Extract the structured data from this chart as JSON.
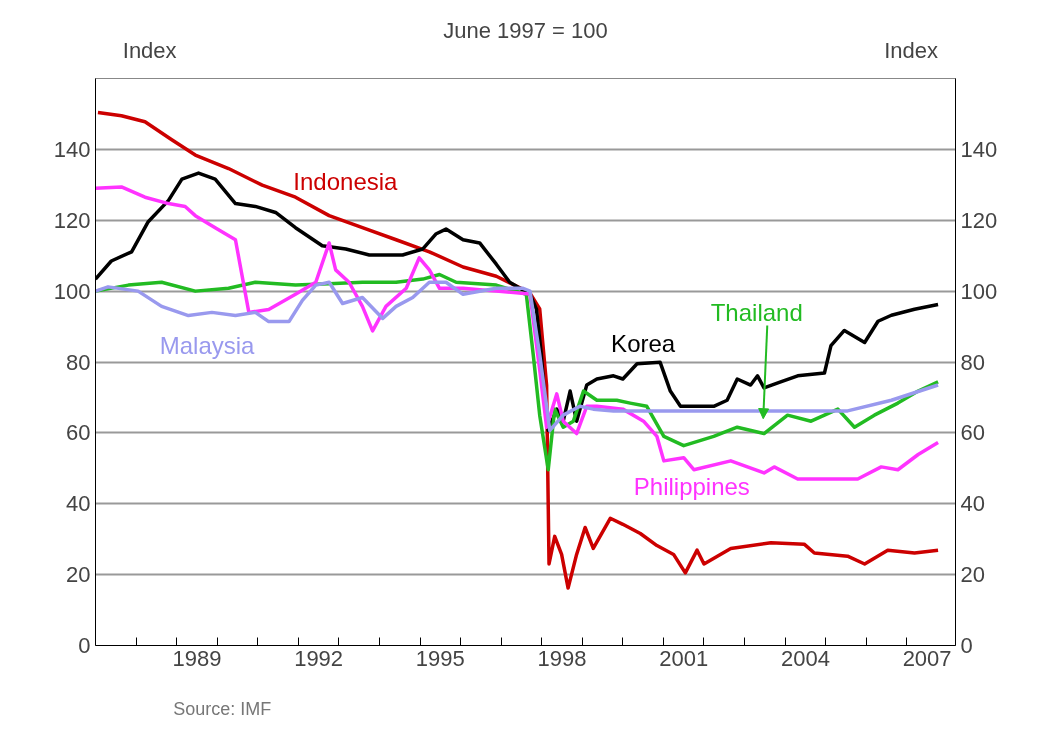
{
  "chart_data": {
    "type": "line",
    "title": "June 1997 = 100",
    "ylabel": "Index",
    "y2label": "Index",
    "annotations": [
      "Source: IMF"
    ],
    "xlim": [
      1987,
      2008.2
    ],
    "ylim": [
      0,
      160
    ],
    "y2lim": [
      0,
      160
    ],
    "xticks": [
      {
        "value": 1988,
        "label": null
      },
      {
        "value": 1989,
        "label": null
      },
      {
        "value": 1990,
        "label": null
      },
      {
        "value": 1991,
        "label": null
      },
      {
        "value": 1992,
        "label": null
      },
      {
        "value": 1993,
        "label": null
      },
      {
        "value": 1994,
        "label": null
      },
      {
        "value": 1995,
        "label": null
      },
      {
        "value": 1996,
        "label": null
      },
      {
        "value": 1997,
        "label": null
      },
      {
        "value": 1998,
        "label": null
      },
      {
        "value": 1999,
        "label": null
      },
      {
        "value": 2000,
        "label": null
      },
      {
        "value": 2001,
        "label": null
      },
      {
        "value": 2002,
        "label": null
      },
      {
        "value": 2003,
        "label": null
      },
      {
        "value": 2004,
        "label": null
      },
      {
        "value": 2005,
        "label": null
      },
      {
        "value": 2006,
        "label": null
      },
      {
        "value": 2007,
        "label": null
      },
      {
        "value": 1989.5,
        "label": "1989"
      },
      {
        "value": 1992.5,
        "label": "1992"
      },
      {
        "value": 1995.5,
        "label": "1995"
      },
      {
        "value": 1998.5,
        "label": "1998"
      },
      {
        "value": 2001.5,
        "label": "2001"
      },
      {
        "value": 2004.5,
        "label": "2004"
      },
      {
        "value": 2007.5,
        "label": "2007"
      }
    ],
    "yticks": [
      0,
      20,
      40,
      60,
      80,
      100,
      120,
      140
    ],
    "y2ticks": [
      0,
      20,
      40,
      60,
      80,
      100,
      120,
      140
    ],
    "grid": "y",
    "marker": "none",
    "line_style": "solid",
    "series": [
      {
        "name": "Indonesia",
        "color": "#cc0000",
        "x": [
          1987.06,
          1987.64,
          1988.22,
          1988.88,
          1989.46,
          1990.28,
          1991.11,
          1991.93,
          1992.76,
          1993.58,
          1994.41,
          1995.23,
          1996.06,
          1996.88,
          1997.7,
          1997.95,
          1998.12,
          1998.18,
          1998.32,
          1998.49,
          1998.65,
          1998.86,
          1999.07,
          1999.27,
          1999.69,
          2000.0,
          2000.43,
          2000.84,
          2001.25,
          2001.54,
          2001.83,
          2002.0,
          2002.66,
          2003.65,
          2004.47,
          2004.72,
          2005.54,
          2005.96,
          2006.53,
          2007.19,
          2007.77
        ],
        "values": [
          150.4,
          149.5,
          147.8,
          142.7,
          138.4,
          134.6,
          129.9,
          126.5,
          121.3,
          117.9,
          114.5,
          111.1,
          106.8,
          104.2,
          99.6,
          95,
          73.5,
          23,
          30.8,
          25.7,
          16.2,
          25.7,
          33.3,
          27.4,
          35.9,
          34.2,
          31.6,
          28.2,
          25.7,
          20.5,
          26.9,
          23,
          27.4,
          29,
          28.6,
          26.1,
          25.2,
          23,
          26.9,
          26.1,
          26.9
        ]
      },
      {
        "name": "Korea",
        "color": "#000000",
        "x": [
          1987.0,
          1987.39,
          1987.89,
          1988.3,
          1988.8,
          1989.13,
          1989.54,
          1989.95,
          1990.45,
          1990.94,
          1991.44,
          1991.93,
          1992.59,
          1993.17,
          1993.75,
          1994.57,
          1995.07,
          1995.4,
          1995.64,
          1996.06,
          1996.47,
          1996.88,
          1997.21,
          1997.71,
          1997.87,
          1997.99,
          1998.08,
          1998.16,
          1998.37,
          1998.53,
          1998.7,
          1998.86,
          1999.11,
          1999.36,
          1999.77,
          2000.0,
          2000.35,
          2000.92,
          2001.17,
          2001.42,
          2002.24,
          2002.57,
          2002.82,
          2003.15,
          2003.32,
          2003.48,
          2003.89,
          2004.31,
          2004.97,
          2005.13,
          2005.46,
          2005.96,
          2006.29,
          2006.62,
          2007.19,
          2007.77
        ],
        "values": [
          103.4,
          108.5,
          111.1,
          119.6,
          125.6,
          131.6,
          133.3,
          131.6,
          124.7,
          123.9,
          122.2,
          117.9,
          112.8,
          111.9,
          110.2,
          110.2,
          111.9,
          116.2,
          117.5,
          114.5,
          113.6,
          107.6,
          102.5,
          99.1,
          94.9,
          82.1,
          69.2,
          60.7,
          66.7,
          63.3,
          71.8,
          63.3,
          73.5,
          75.2,
          76.1,
          75.2,
          79.5,
          79.9,
          71.8,
          67.5,
          67.5,
          69.2,
          75.2,
          73.5,
          76.1,
          72.7,
          74.4,
          76.1,
          76.9,
          84.6,
          88.9,
          85.5,
          91.5,
          93.2,
          94.9,
          96.2
        ]
      },
      {
        "name": "Thailand",
        "color": "#22bb22",
        "x": [
          1987.0,
          1987.81,
          1988.63,
          1989.46,
          1990.28,
          1990.94,
          1991.93,
          1992.76,
          1993.58,
          1994.41,
          1995.07,
          1995.48,
          1995.89,
          1996.88,
          1997.62,
          1997.79,
          1997.95,
          1998.16,
          1998.32,
          1998.53,
          1998.78,
          1999.03,
          1999.36,
          1999.85,
          2000.18,
          2000.59,
          2001.01,
          2001.5,
          2002.24,
          2002.82,
          2003.48,
          2004.06,
          2004.64,
          2005.3,
          2005.71,
          2006.2,
          2006.78,
          2007.28,
          2007.77
        ],
        "values": [
          100,
          101.7,
          102.5,
          100,
          100.8,
          102.5,
          101.7,
          102.1,
          102.5,
          102.5,
          103.4,
          104.7,
          102.5,
          101.7,
          99.1,
          82.1,
          65,
          49.6,
          66.7,
          61.6,
          63.3,
          71.8,
          69.2,
          69.2,
          68.4,
          67.5,
          59,
          56.4,
          59,
          61.6,
          59.8,
          65,
          63.3,
          66.7,
          61.6,
          65,
          68.4,
          71.8,
          74.4
        ]
      },
      {
        "name": "Philippines",
        "color": "#ff33ff",
        "x": [
          1987.0,
          1987.64,
          1988.22,
          1988.8,
          1989.21,
          1989.46,
          1989.95,
          1990.45,
          1990.78,
          1991.27,
          1991.93,
          1992.43,
          1992.76,
          1992.92,
          1993.25,
          1993.58,
          1993.83,
          1994.16,
          1994.66,
          1994.98,
          1995.23,
          1995.48,
          1996.06,
          1996.88,
          1997.71,
          1997.95,
          1998.12,
          1998.37,
          1998.53,
          1998.86,
          1999.11,
          1999.36,
          2000.0,
          2000.51,
          2000.84,
          2001.01,
          2001.5,
          2001.75,
          2002.66,
          2003.48,
          2003.73,
          2004.31,
          2005.13,
          2005.79,
          2006.37,
          2006.78,
          2007.28,
          2007.77
        ],
        "values": [
          129,
          129.4,
          126.5,
          124.7,
          123.9,
          121.3,
          117.9,
          114.5,
          94,
          94.8,
          99.1,
          102.5,
          113.6,
          106,
          102.5,
          95.7,
          88.8,
          95.7,
          100.8,
          109.4,
          106,
          100.8,
          100.8,
          100,
          99.2,
          77.8,
          61.6,
          71,
          63.3,
          59.8,
          67.5,
          67.5,
          66.7,
          63.3,
          59,
          52.1,
          53,
          49.6,
          52.1,
          48.7,
          50.4,
          47,
          47,
          47,
          50.4,
          49.6,
          53.9,
          57.3
        ]
      },
      {
        "name": "Malaysia",
        "color": "#9999ee",
        "x": [
          1987.0,
          1987.31,
          1988.05,
          1988.63,
          1989.29,
          1989.87,
          1990.45,
          1990.94,
          1991.27,
          1991.77,
          1992.1,
          1992.43,
          1992.76,
          1993.09,
          1993.58,
          1994.08,
          1994.41,
          1994.82,
          1995.23,
          1995.64,
          1996.06,
          1996.88,
          1997.54,
          1997.71,
          1997.95,
          1998.2,
          1998.53,
          1998.94,
          1999.27,
          1999.77,
          2005.54,
          2006.62,
          2007.77
        ],
        "values": [
          100,
          101.2,
          100,
          95.7,
          93.1,
          94,
          93.1,
          94,
          91.4,
          91.4,
          97.4,
          101.7,
          102.5,
          96.5,
          98.2,
          92.3,
          95.7,
          98.2,
          102.5,
          102.5,
          99.1,
          100.8,
          100.8,
          100,
          82.1,
          60.7,
          65,
          67.5,
          66.7,
          66.2,
          66.2,
          69.2,
          73.5
        ]
      }
    ]
  }
}
